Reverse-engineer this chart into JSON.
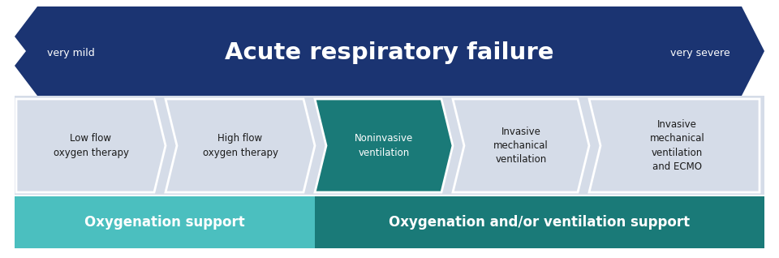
{
  "title": "Acute respiratory failure",
  "very_mild": "very mild",
  "very_severe": "very severe",
  "dark_blue": "#1b3472",
  "teal_dark": "#1a7a78",
  "teal_light": "#4bbfbf",
  "light_gray": "#d5dce8",
  "mid_gray": "#c8d0dc",
  "white": "#ffffff",
  "bg_white": "#ffffff",
  "labels": [
    "Low flow\noxygen therapy",
    "High flow\noxygen therapy",
    "Noninvasive\nventilation",
    "Invasive\nmechanical\nventilation",
    "Invasive\nmechanical\nventilation\nand ECMO"
  ],
  "label_colors": [
    "#1a1a1a",
    "#1a1a1a",
    "#ffffff",
    "#1a1a1a",
    "#1a1a1a"
  ],
  "chevron_colors": [
    "#d5dce8",
    "#d5dce8",
    "#1a7a78",
    "#d5dce8",
    "#d5dce8"
  ],
  "bottom_labels": [
    "Oxygenation support",
    "Oxygenation and/or ventilation support"
  ],
  "bottom_colors": [
    "#4bbfbf",
    "#1a7a78"
  ]
}
